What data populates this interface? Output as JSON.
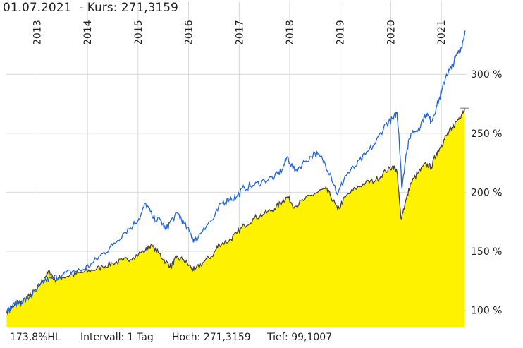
{
  "header": {
    "date": "01.07.2021",
    "kurs_label": "- Kurs:",
    "kurs_value": "271,3159"
  },
  "footer": {
    "hl": "173,8%HL",
    "interval": "Intervall: 1 Tag",
    "high": "Hoch: 271,3159",
    "low": "Tief: 99,1007"
  },
  "colors": {
    "area_fill": "#fff200",
    "main_line": "#444444",
    "compare_line": "#2266dd",
    "grid": "#d9d9d9"
  },
  "chart_data": {
    "type": "area",
    "x_tick_labels": [
      "2013",
      "2014",
      "2015",
      "2016",
      "2017",
      "2018",
      "2019",
      "2020",
      "2021"
    ],
    "x_ticks": [
      2013,
      2014,
      2015,
      2016,
      2017,
      2018,
      2019,
      2020,
      2021
    ],
    "y_tick_labels": [
      "100 %",
      "150 %",
      "200 %",
      "250 %",
      "300 %"
    ],
    "y_ticks": [
      100,
      150,
      200,
      250,
      300
    ],
    "xlim": [
      2012.38,
      2021.5
    ],
    "ylim": [
      86,
      345
    ],
    "grid": true,
    "series": [
      {
        "role": "main",
        "style": "area",
        "points": [
          [
            2012.4,
            99
          ],
          [
            2012.55,
            104
          ],
          [
            2012.7,
            108
          ],
          [
            2012.85,
            112
          ],
          [
            2013.0,
            118
          ],
          [
            2013.15,
            128
          ],
          [
            2013.25,
            133
          ],
          [
            2013.35,
            126
          ],
          [
            2013.5,
            128
          ],
          [
            2013.7,
            130
          ],
          [
            2013.9,
            132
          ],
          [
            2014.1,
            134
          ],
          [
            2014.3,
            137
          ],
          [
            2014.5,
            140
          ],
          [
            2014.7,
            142
          ],
          [
            2014.9,
            145
          ],
          [
            2015.15,
            151
          ],
          [
            2015.25,
            155
          ],
          [
            2015.4,
            149
          ],
          [
            2015.55,
            141
          ],
          [
            2015.65,
            137
          ],
          [
            2015.75,
            144
          ],
          [
            2015.9,
            143
          ],
          [
            2016.05,
            136
          ],
          [
            2016.12,
            134
          ],
          [
            2016.3,
            141
          ],
          [
            2016.5,
            148
          ],
          [
            2016.6,
            156
          ],
          [
            2016.8,
            159
          ],
          [
            2016.95,
            165
          ],
          [
            2017.1,
            172
          ],
          [
            2017.3,
            178
          ],
          [
            2017.5,
            182
          ],
          [
            2017.7,
            186
          ],
          [
            2017.85,
            192
          ],
          [
            2017.95,
            196
          ],
          [
            2018.1,
            188
          ],
          [
            2018.3,
            194
          ],
          [
            2018.5,
            199
          ],
          [
            2018.7,
            203
          ],
          [
            2018.8,
            198
          ],
          [
            2018.95,
            185
          ],
          [
            2019.1,
            196
          ],
          [
            2019.3,
            203
          ],
          [
            2019.5,
            208
          ],
          [
            2019.7,
            210
          ],
          [
            2019.9,
            218
          ],
          [
            2020.05,
            222
          ],
          [
            2020.12,
            218
          ],
          [
            2020.2,
            178
          ],
          [
            2020.28,
            190
          ],
          [
            2020.4,
            208
          ],
          [
            2020.55,
            217
          ],
          [
            2020.7,
            224
          ],
          [
            2020.8,
            221
          ],
          [
            2020.9,
            233
          ],
          [
            2021.0,
            240
          ],
          [
            2021.1,
            248
          ],
          [
            2021.2,
            253
          ],
          [
            2021.3,
            260
          ],
          [
            2021.4,
            266
          ],
          [
            2021.46,
            271.3
          ]
        ]
      },
      {
        "role": "comparison",
        "style": "line",
        "points": [
          [
            2012.4,
            98
          ],
          [
            2012.55,
            105
          ],
          [
            2012.7,
            107
          ],
          [
            2012.85,
            111
          ],
          [
            2013.0,
            117
          ],
          [
            2013.15,
            125
          ],
          [
            2013.3,
            127
          ],
          [
            2013.5,
            130
          ],
          [
            2013.7,
            133
          ],
          [
            2013.9,
            134
          ],
          [
            2014.1,
            140
          ],
          [
            2014.3,
            148
          ],
          [
            2014.5,
            155
          ],
          [
            2014.7,
            165
          ],
          [
            2014.9,
            172
          ],
          [
            2015.05,
            180
          ],
          [
            2015.15,
            191
          ],
          [
            2015.3,
            178
          ],
          [
            2015.45,
            176
          ],
          [
            2015.55,
            168
          ],
          [
            2015.65,
            176
          ],
          [
            2015.8,
            182
          ],
          [
            2015.9,
            174
          ],
          [
            2016.05,
            164
          ],
          [
            2016.12,
            158
          ],
          [
            2016.3,
            170
          ],
          [
            2016.5,
            178
          ],
          [
            2016.65,
            191
          ],
          [
            2016.8,
            194
          ],
          [
            2016.95,
            196
          ],
          [
            2017.1,
            204
          ],
          [
            2017.3,
            206
          ],
          [
            2017.5,
            210
          ],
          [
            2017.7,
            213
          ],
          [
            2017.85,
            219
          ],
          [
            2017.95,
            230
          ],
          [
            2018.1,
            218
          ],
          [
            2018.3,
            226
          ],
          [
            2018.5,
            233
          ],
          [
            2018.65,
            228
          ],
          [
            2018.8,
            216
          ],
          [
            2018.95,
            198
          ],
          [
            2019.1,
            214
          ],
          [
            2019.3,
            222
          ],
          [
            2019.5,
            232
          ],
          [
            2019.7,
            242
          ],
          [
            2019.9,
            258
          ],
          [
            2020.05,
            262
          ],
          [
            2020.12,
            268
          ],
          [
            2020.16,
            250
          ],
          [
            2020.22,
            203
          ],
          [
            2020.3,
            232
          ],
          [
            2020.4,
            250
          ],
          [
            2020.55,
            254
          ],
          [
            2020.7,
            267
          ],
          [
            2020.8,
            260
          ],
          [
            2020.9,
            272
          ],
          [
            2021.0,
            284
          ],
          [
            2021.1,
            300
          ],
          [
            2021.2,
            305
          ],
          [
            2021.3,
            316
          ],
          [
            2021.4,
            323
          ],
          [
            2021.47,
            337
          ]
        ]
      }
    ]
  }
}
